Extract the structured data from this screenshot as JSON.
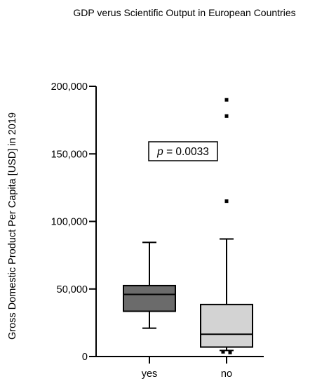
{
  "chart_data": {
    "type": "box",
    "title": "GDP verus Scientific Output in European Countries",
    "xlabel": "",
    "ylabel": "Gross Domestic Product Per Capita [USD] in 2019",
    "ylim": [
      0,
      200000
    ],
    "yticks": [
      0,
      50000,
      100000,
      150000,
      200000
    ],
    "ytick_labels": [
      "0",
      "50,000",
      "100,000",
      "150,000",
      "200,000"
    ],
    "categories": [
      "yes",
      "no"
    ],
    "boxes": [
      {
        "category": "yes",
        "whisker_low": 21000,
        "q1": 33500,
        "median": 46000,
        "q3": 52500,
        "whisker_high": 84500,
        "outliers": [],
        "fill": "#6b6b6b"
      },
      {
        "category": "no",
        "whisker_low": 4500,
        "q1": 7000,
        "median": 16500,
        "q3": 38500,
        "whisker_high": 87000,
        "outliers": [
          115000,
          178000,
          190000,
          3000,
          3500
        ],
        "fill": "#d3d3d3"
      }
    ],
    "annotation": {
      "prefix": "p",
      "text": " = 0.0033"
    },
    "grid": false,
    "legend": "none"
  }
}
